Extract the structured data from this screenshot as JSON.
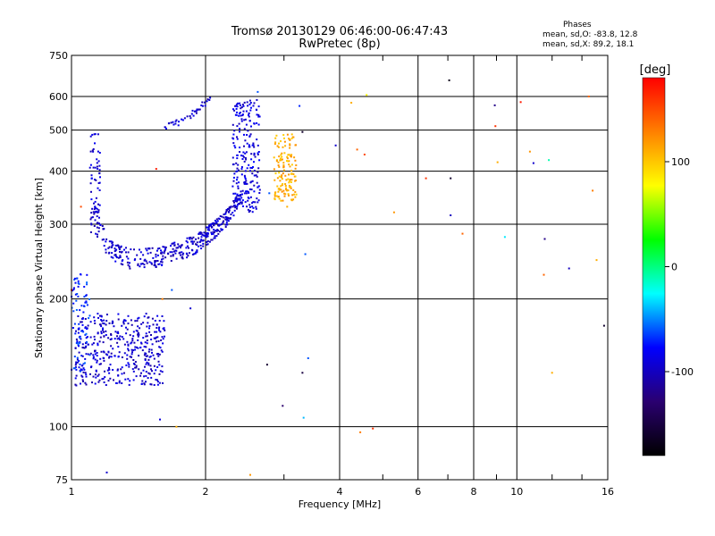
{
  "header": {
    "title_line1": "Tromsø 20130129 06:46:00-06:47:43",
    "title_line2": "RwPretec (8p)"
  },
  "stats": {
    "heading": "Phases",
    "line_o": "mean, sd,O: -83.8, 12.8",
    "line_x": "mean, sd,X:  89.2, 18.1"
  },
  "chart_data": {
    "type": "scatter",
    "title": "Tromsø 20130129 06:46:00-06:47:43",
    "subtitle": "RwPretec (8p)",
    "xlabel": "Frequency [MHz]",
    "ylabel": "Stationary phase Virtual Height [km]",
    "xscale": "log",
    "yscale": "log",
    "xlim": [
      1,
      16
    ],
    "ylim": [
      75,
      750
    ],
    "x_ticks": [
      1,
      2,
      4,
      6,
      8,
      10,
      16
    ],
    "y_ticks": [
      75,
      100,
      200,
      300,
      400,
      500,
      600,
      750
    ],
    "grid": true,
    "colorbar": {
      "label": "[deg]",
      "range": [
        -180,
        180
      ],
      "ticks": [
        100,
        0,
        -100
      ],
      "stops": [
        "#000000",
        "#2a0070",
        "#0000ff",
        "#00ffff",
        "#00ff00",
        "#ffff00",
        "#ff8000",
        "#ff0000"
      ]
    },
    "series": [
      {
        "name": "O-trace lower E/F1 region",
        "shape": "band",
        "f_min": 1.02,
        "f_max": 1.62,
        "h_min": 125,
        "h_max": 185,
        "phase": -95,
        "n": 420
      },
      {
        "name": "O-trace F1 left spike",
        "shape": "band",
        "f_min": 1.0,
        "f_max": 1.1,
        "h_min": 135,
        "h_max": 230,
        "phase": -70,
        "n": 80
      },
      {
        "name": "O-trace F2 cusp",
        "shape": "curve",
        "x": [
          1.12,
          1.15,
          1.2,
          1.3,
          1.4,
          1.5,
          1.6,
          1.7,
          1.8,
          1.9,
          2.0,
          2.1,
          2.2,
          2.3,
          2.4
        ],
        "y": [
          350,
          300,
          268,
          252,
          248,
          250,
          253,
          258,
          263,
          270,
          280,
          292,
          305,
          325,
          350
        ],
        "spread": 14,
        "phase": -95,
        "n": 380
      },
      {
        "name": "O-trace high rising branch",
        "shape": "band",
        "f_min": 2.3,
        "f_max": 2.65,
        "h_min": 320,
        "h_max": 590,
        "phase": -90,
        "n": 220
      },
      {
        "name": "O-trace left vertical",
        "shape": "band",
        "f_min": 1.1,
        "f_max": 1.16,
        "h_min": 280,
        "h_max": 490,
        "phase": -95,
        "n": 70
      },
      {
        "name": "O-trace upper branch",
        "shape": "curve",
        "x": [
          1.6,
          1.7,
          1.8,
          1.9,
          2.0,
          2.05
        ],
        "y": [
          505,
          515,
          530,
          555,
          580,
          590
        ],
        "spread": 10,
        "phase": -95,
        "n": 40
      },
      {
        "name": "X-trace",
        "shape": "band",
        "f_min": 2.85,
        "f_max": 3.2,
        "h_min": 340,
        "h_max": 490,
        "phase": 110,
        "n": 140
      },
      {
        "name": "noise",
        "shape": "points",
        "x": [
          1.2,
          1.58,
          1.72,
          1.85,
          1.55,
          2.52,
          2.75,
          2.98,
          3.25,
          3.3,
          3.35,
          3.4,
          3.92,
          4.25,
          4.38,
          4.55,
          4.6,
          4.75,
          5.3,
          6.25,
          7.05,
          7.1,
          7.1,
          7.55,
          8.92,
          8.95,
          9.05,
          9.4,
          10.2,
          10.7,
          10.9,
          11.5,
          11.55,
          11.8,
          12.0,
          13.1,
          14.5,
          14.8,
          15.1,
          15.7,
          2.62,
          3.05,
          2.78,
          3.3,
          3.32,
          1.6,
          1.68,
          4.45,
          1.05,
          1.0
        ],
        "y": [
          78,
          104,
          100,
          190,
          405,
          77,
          140,
          112,
          570,
          495,
          255,
          145,
          460,
          580,
          450,
          438,
          605,
          99,
          320,
          385,
          655,
          385,
          315,
          285,
          572,
          511,
          420,
          280,
          582,
          445,
          418,
          228,
          277,
          425,
          134,
          236,
          600,
          360,
          247,
          173,
          615,
          330,
          355,
          134,
          105,
          200,
          210,
          97,
          330,
          210
        ],
        "phases": [
          -95,
          -90,
          110,
          -95,
          170,
          120,
          -160,
          -130,
          -70,
          -160,
          -60,
          -60,
          -95,
          110,
          140,
          150,
          80,
          160,
          120,
          160,
          -170,
          -160,
          -100,
          140,
          -120,
          160,
          110,
          -30,
          170,
          120,
          -95,
          140,
          -120,
          -10,
          110,
          -100,
          140,
          130,
          110,
          -160,
          -60,
          110,
          -60,
          -150,
          -40,
          130,
          -60,
          130,
          150,
          160
        ]
      }
    ]
  }
}
